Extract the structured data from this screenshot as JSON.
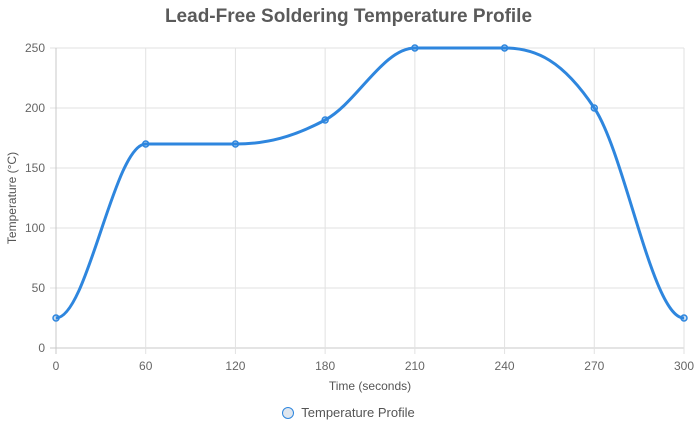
{
  "chart_data": {
    "type": "line",
    "title": "Lead-Free Soldering Temperature Profile",
    "xlabel": "Time (seconds)",
    "ylabel": "Temperature (°C)",
    "categories": [
      "0",
      "60",
      "120",
      "180",
      "210",
      "240",
      "270",
      "300"
    ],
    "series": [
      {
        "name": "Temperature Profile",
        "values": [
          25,
          170,
          170,
          190,
          250,
          250,
          200,
          25
        ],
        "color": "#2e86de"
      }
    ],
    "ylim": [
      0,
      250
    ],
    "yticks": [
      0,
      50,
      100,
      150,
      200,
      250
    ],
    "grid": true,
    "legend_position": "bottom"
  }
}
